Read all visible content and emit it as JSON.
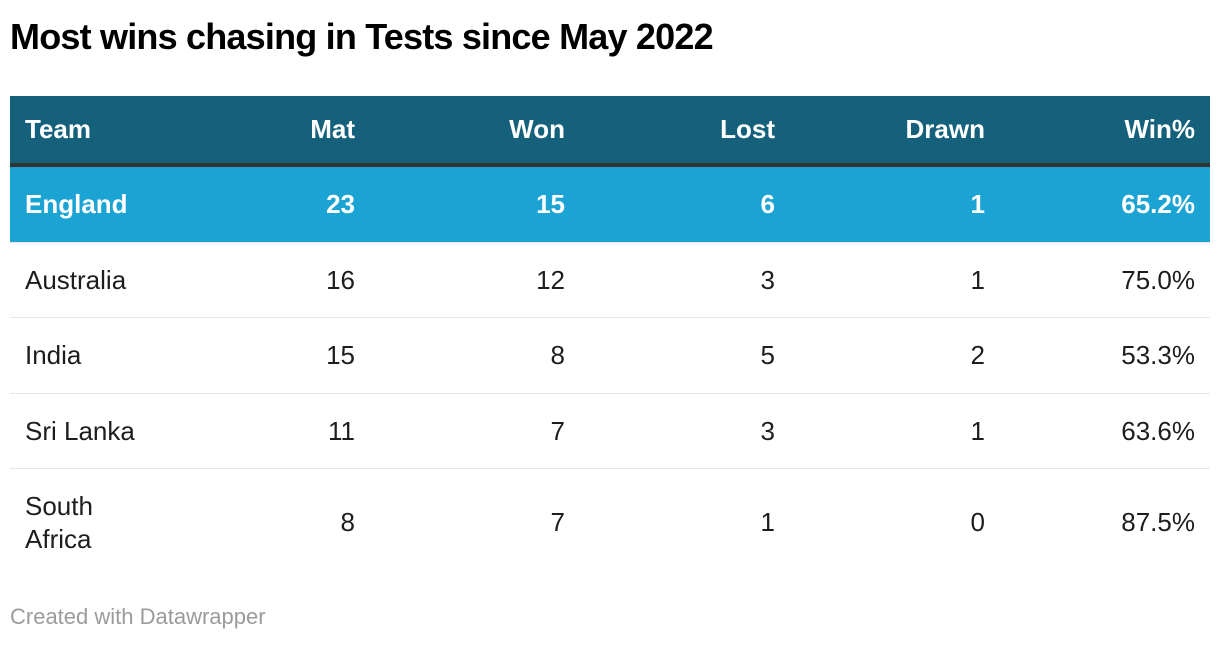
{
  "title": "Most wins chasing in Tests since May 2022",
  "footer": {
    "attribution": "Created with Datawrapper"
  },
  "colors": {
    "header_bg": "#15607a",
    "header_text": "#ffffff",
    "highlight_row_bg": "#1ba3d3",
    "highlight_row_text": "#ffffff",
    "header_bottom_rule": "#333333",
    "row_divider": "#e6e6e6",
    "body_text": "#1d1d1d",
    "attribution_text": "#9b9b9b"
  },
  "chart_data": {
    "type": "table",
    "title": "Most wins chasing in Tests since May 2022",
    "columns": [
      "Team",
      "Mat",
      "Won",
      "Lost",
      "Drawn",
      "Win%"
    ],
    "rows": [
      [
        "England",
        23,
        15,
        6,
        1,
        "65.2%"
      ],
      [
        "Australia",
        16,
        12,
        3,
        1,
        "75.0%"
      ],
      [
        "India",
        15,
        8,
        5,
        2,
        "53.3%"
      ],
      [
        "Sri Lanka",
        11,
        7,
        3,
        1,
        "63.6%"
      ],
      [
        "South Africa",
        8,
        7,
        1,
        0,
        "87.5%"
      ]
    ],
    "highlighted_row_index": 0,
    "highlighted_row_team": "England",
    "layout_hints": {
      "team_column_align": "left",
      "numeric_columns_align": "right",
      "header_style": "dark-teal band, white bold text",
      "highlight_style": "bright blue band, white bold text"
    }
  },
  "table": {
    "columns": [
      {
        "label": "Team"
      },
      {
        "label": "Mat"
      },
      {
        "label": "Won"
      },
      {
        "label": "Lost"
      },
      {
        "label": "Drawn"
      },
      {
        "label": "Win%"
      }
    ],
    "rows": [
      {
        "highlight": true,
        "cells": [
          "England",
          "23",
          "15",
          "6",
          "1",
          "65.2%"
        ]
      },
      {
        "highlight": false,
        "cells": [
          "Australia",
          "16",
          "12",
          "3",
          "1",
          "75.0%"
        ]
      },
      {
        "highlight": false,
        "cells": [
          "India",
          "15",
          "8",
          "5",
          "2",
          "53.3%"
        ]
      },
      {
        "highlight": false,
        "cells": [
          "Sri Lanka",
          "11",
          "7",
          "3",
          "1",
          "63.6%"
        ]
      },
      {
        "highlight": false,
        "cells": [
          "South Africa",
          "8",
          "7",
          "1",
          "0",
          "87.5%"
        ]
      }
    ]
  }
}
